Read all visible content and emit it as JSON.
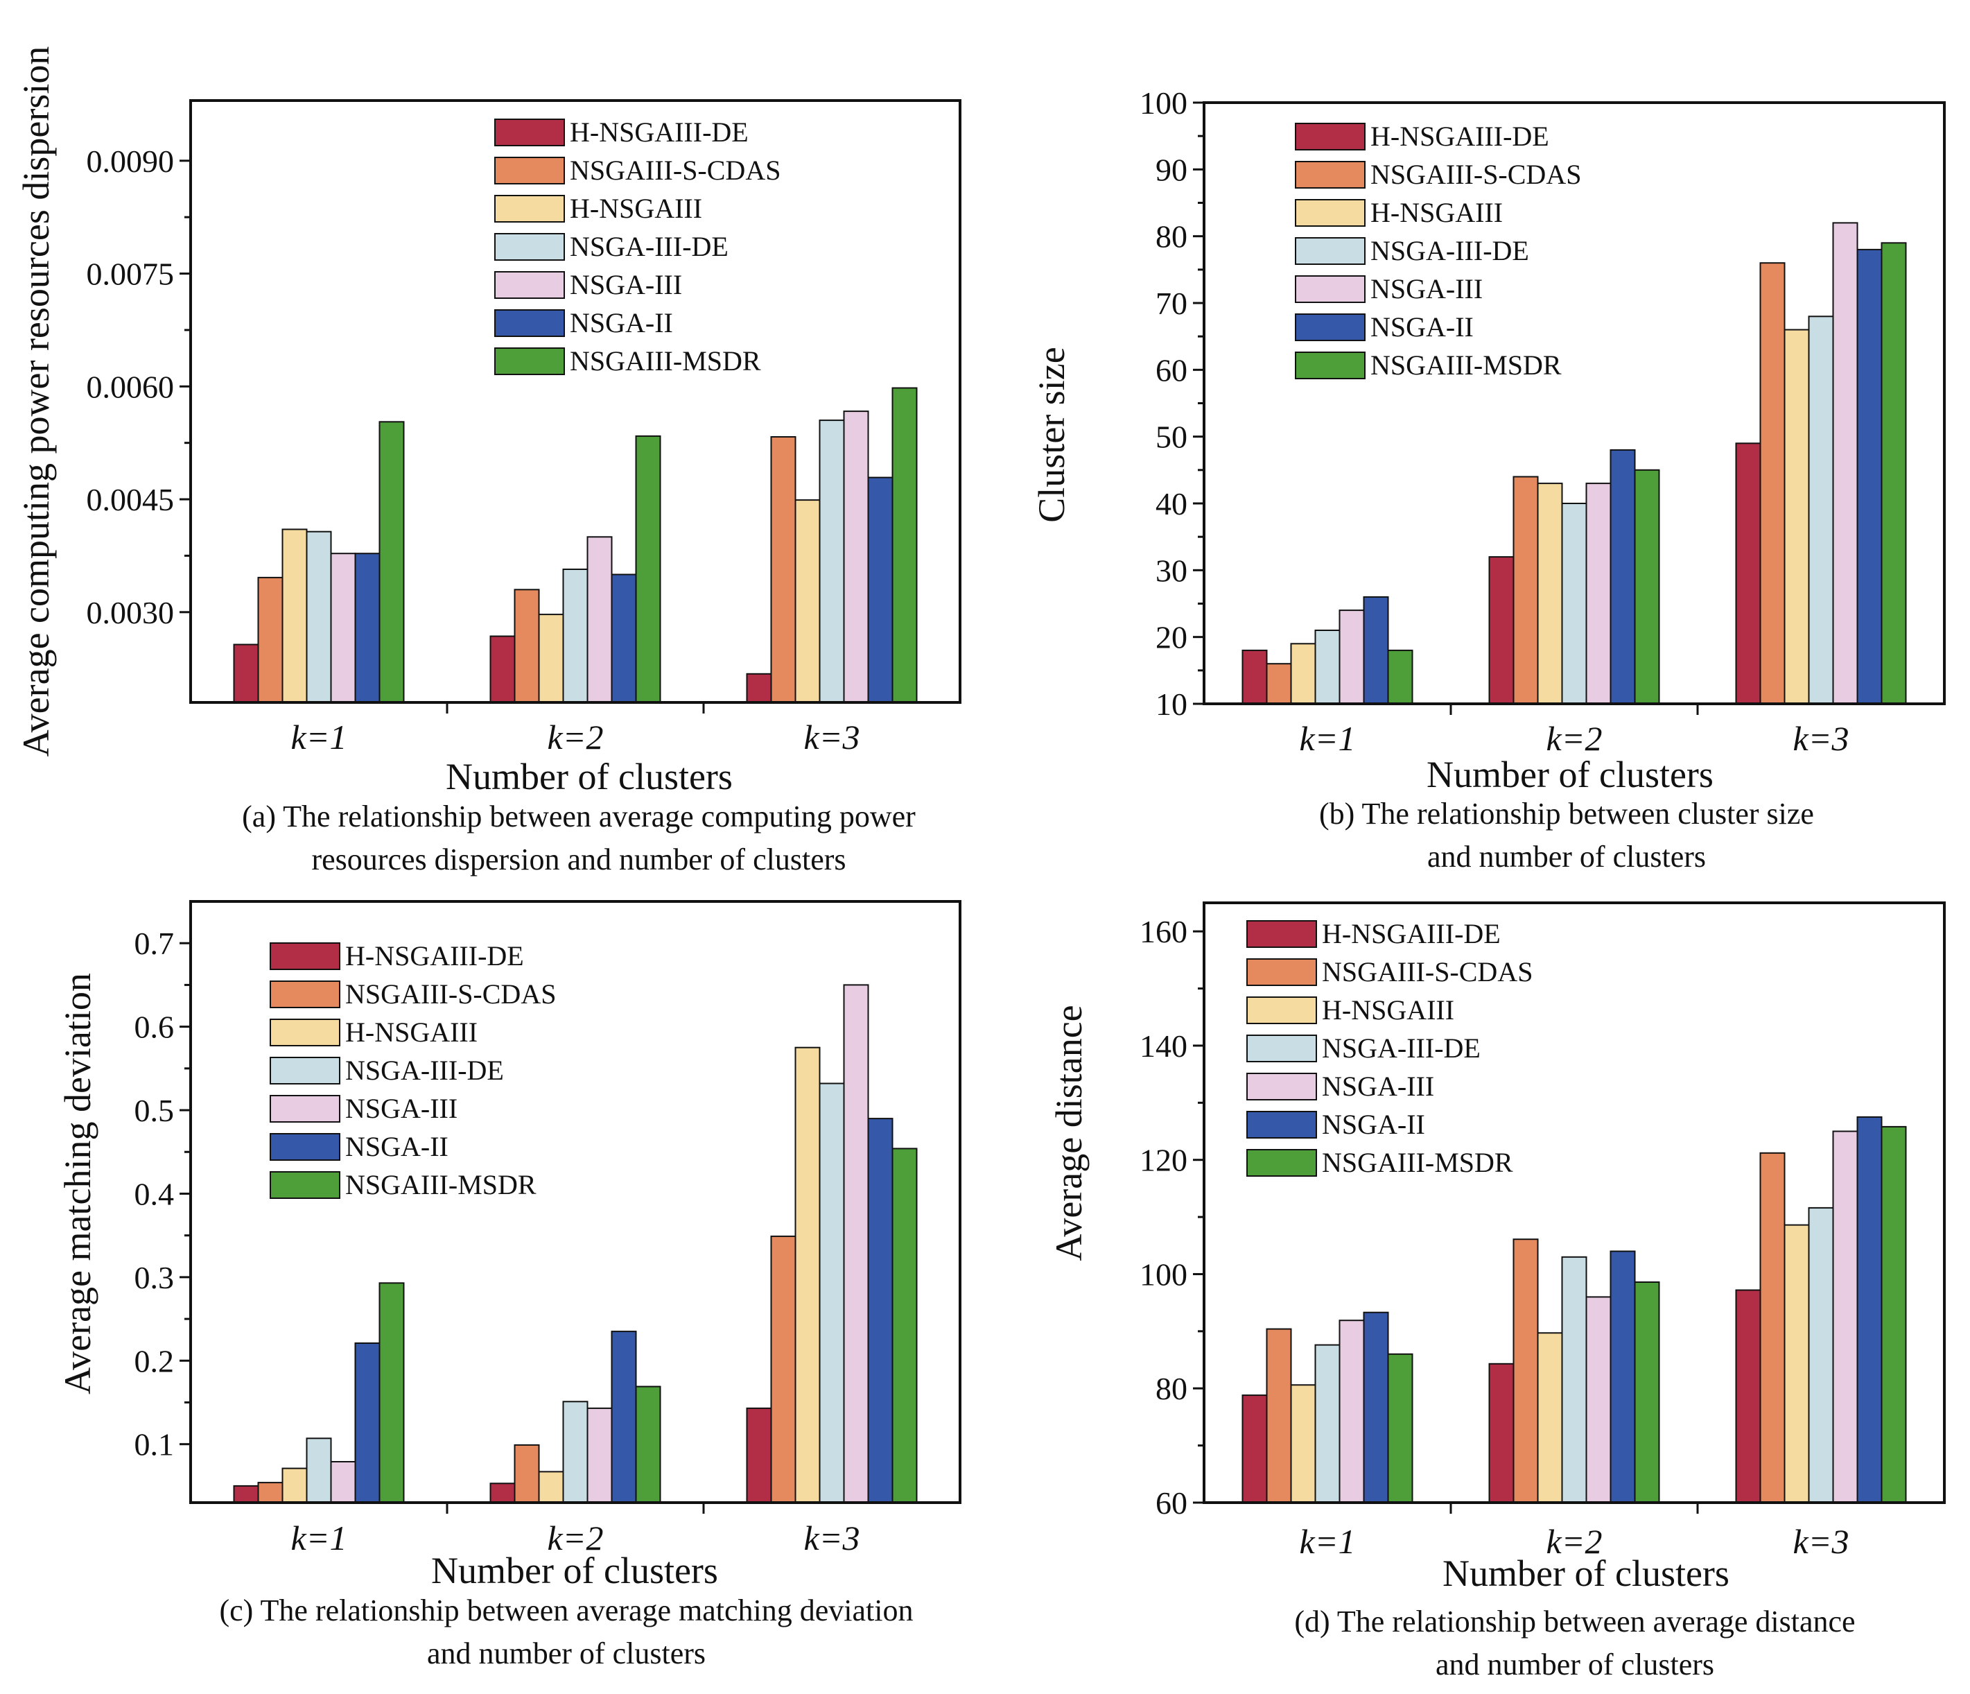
{
  "figure": {
    "series_names": [
      "H-NSGAIII-DE",
      "NSGAIII-S-CDAS",
      "H-NSGAIII",
      "NSGA-III-DE",
      "NSGA-III",
      "NSGA-II",
      "NSGAIII-MSDR"
    ],
    "series_colors": [
      "#b22e47",
      "#e48a5e",
      "#f6dba0",
      "#c8dee4",
      "#e8cce2",
      "#3559a8",
      "#4e9e39"
    ]
  },
  "chart_data": [
    {
      "type": "bar",
      "id": "a",
      "categories": [
        "k=1",
        "k=2",
        "k=3"
      ],
      "xlabel": "Number of clusters",
      "ylabel": "Average computing power resources dispersion",
      "ylim": [
        0.0018,
        0.0098
      ],
      "yticks": [
        0.003,
        0.0045,
        0.006,
        0.0075,
        0.009
      ],
      "ytick_labels": [
        "0.0030",
        "0.0045",
        "0.0060",
        "0.0075",
        "0.0090"
      ],
      "caption": [
        "(a) The relationship between average computing power",
        "resources dispersion and number of clusters"
      ],
      "legend_position": "top-right",
      "series": [
        {
          "name": "H-NSGAIII-DE",
          "values": [
            0.00257,
            0.00268,
            0.00218
          ]
        },
        {
          "name": "NSGAIII-S-CDAS",
          "values": [
            0.00346,
            0.0033,
            0.00533
          ]
        },
        {
          "name": "H-NSGAIII",
          "values": [
            0.0041,
            0.00297,
            0.00449
          ]
        },
        {
          "name": "NSGA-III-DE",
          "values": [
            0.00407,
            0.00357,
            0.00555
          ]
        },
        {
          "name": "NSGA-III",
          "values": [
            0.00378,
            0.004,
            0.00567
          ]
        },
        {
          "name": "NSGA-II",
          "values": [
            0.00378,
            0.0035,
            0.00479
          ]
        },
        {
          "name": "NSGAIII-MSDR",
          "values": [
            0.00553,
            0.00534,
            0.00598
          ]
        }
      ]
    },
    {
      "type": "bar",
      "id": "b",
      "categories": [
        "k=1",
        "k=2",
        "k=3"
      ],
      "xlabel": "Number of clusters",
      "ylabel": "Cluster size",
      "ylim": [
        10,
        100
      ],
      "yticks": [
        10,
        20,
        30,
        40,
        50,
        60,
        70,
        80,
        90,
        100
      ],
      "ytick_labels": [
        "10",
        "20",
        "30",
        "40",
        "50",
        "60",
        "70",
        "80",
        "90",
        "100"
      ],
      "caption": [
        "(b) The relationship between cluster size",
        "and number of clusters"
      ],
      "legend_position": "top-left",
      "series": [
        {
          "name": "H-NSGAIII-DE",
          "values": [
            18,
            32,
            49
          ]
        },
        {
          "name": "NSGAIII-S-CDAS",
          "values": [
            16,
            44,
            76
          ]
        },
        {
          "name": "H-NSGAIII",
          "values": [
            19,
            43,
            66
          ]
        },
        {
          "name": "NSGA-III-DE",
          "values": [
            21,
            40,
            68
          ]
        },
        {
          "name": "NSGA-III",
          "values": [
            24,
            43,
            82
          ]
        },
        {
          "name": "NSGA-II",
          "values": [
            26,
            48,
            78
          ]
        },
        {
          "name": "NSGAIII-MSDR",
          "values": [
            18,
            45,
            79
          ]
        }
      ]
    },
    {
      "type": "bar",
      "id": "c",
      "categories": [
        "k=1",
        "k=2",
        "k=3"
      ],
      "xlabel": "Number of clusters",
      "ylabel": "Average matching deviation",
      "ylim": [
        0.03,
        0.75
      ],
      "yticks": [
        0.1,
        0.2,
        0.3,
        0.4,
        0.5,
        0.6,
        0.7
      ],
      "ytick_labels": [
        "0.1",
        "0.2",
        "0.3",
        "0.4",
        "0.5",
        "0.6",
        "0.7"
      ],
      "caption": [
        "(c) The relationship between average matching deviation",
        "and number of clusters"
      ],
      "legend_position": "top-left",
      "series": [
        {
          "name": "H-NSGAIII-DE",
          "values": [
            0.05,
            0.053,
            0.143
          ]
        },
        {
          "name": "NSGAIII-S-CDAS",
          "values": [
            0.054,
            0.099,
            0.349
          ]
        },
        {
          "name": "H-NSGAIII",
          "values": [
            0.071,
            0.067,
            0.575
          ]
        },
        {
          "name": "NSGA-III-DE",
          "values": [
            0.107,
            0.151,
            0.532
          ]
        },
        {
          "name": "NSGA-III",
          "values": [
            0.079,
            0.143,
            0.65
          ]
        },
        {
          "name": "NSGA-II",
          "values": [
            0.221,
            0.235,
            0.49
          ]
        },
        {
          "name": "NSGAIII-MSDR",
          "values": [
            0.293,
            0.169,
            0.454
          ]
        }
      ]
    },
    {
      "type": "bar",
      "id": "d",
      "categories": [
        "k=1",
        "k=2",
        "k=3"
      ],
      "xlabel": "Number of clusters",
      "ylabel": "Average distance",
      "ylim": [
        60,
        165
      ],
      "yticks": [
        60,
        80,
        100,
        120,
        140,
        160
      ],
      "ytick_labels": [
        "60",
        "80",
        "100",
        "120",
        "140",
        "160"
      ],
      "caption": [
        "(d) The relationship between average distance",
        "and number of clusters"
      ],
      "legend_position": "top-left",
      "series": [
        {
          "name": "H-NSGAIII-DE",
          "values": [
            78.8,
            84.3,
            97.2
          ]
        },
        {
          "name": "NSGAIII-S-CDAS",
          "values": [
            90.4,
            106.1,
            121.2
          ]
        },
        {
          "name": "H-NSGAIII",
          "values": [
            80.6,
            89.7,
            108.6
          ]
        },
        {
          "name": "NSGA-III-DE",
          "values": [
            87.6,
            103.0,
            111.6
          ]
        },
        {
          "name": "NSGA-III",
          "values": [
            91.9,
            96.0,
            125.0
          ]
        },
        {
          "name": "NSGA-II",
          "values": [
            93.3,
            104.0,
            127.5
          ]
        },
        {
          "name": "NSGAIII-MSDR",
          "values": [
            86.0,
            98.6,
            125.8
          ]
        }
      ]
    }
  ]
}
